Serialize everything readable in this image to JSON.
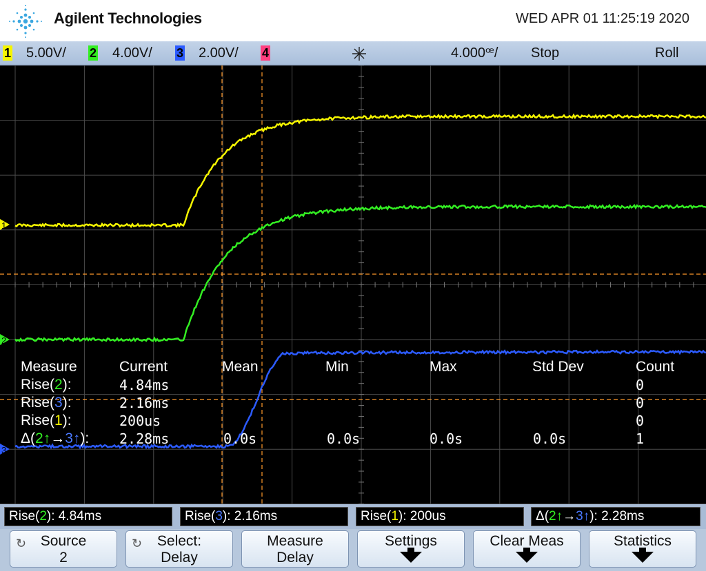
{
  "header": {
    "brand": "Agilent Technologies",
    "datetime": "WED APR 01 11:25:19 2020",
    "logo_icon": "agilent-spark-icon"
  },
  "status": {
    "ch1": {
      "num": "1",
      "scale": "5.00V/",
      "color": "#f5f500"
    },
    "ch2": {
      "num": "2",
      "scale": "4.00V/",
      "color": "#33ee22"
    },
    "ch3": {
      "num": "3",
      "scale": "2.00V/",
      "color": "#2c5bff"
    },
    "ch4": {
      "num": "4",
      "color": "#ff3f7f"
    },
    "trigger_icon": "sparkle-icon",
    "timebase": "4.000ꟹ/",
    "state": "Stop",
    "mode": "Roll"
  },
  "markers": {
    "ch1": "1",
    "ch2": "2",
    "ch3": "3"
  },
  "measure_table": {
    "headers": [
      "Measure",
      "Current",
      "Mean",
      "Min",
      "Max",
      "Std Dev",
      "Count"
    ],
    "rows": [
      {
        "label_pre": "Rise(",
        "ch": "2",
        "label_post": "):",
        "current": "4.84ms",
        "count": "0"
      },
      {
        "label_pre": "Rise(",
        "ch": "3",
        "label_post": "):",
        "current": "2.16ms",
        "count": "0"
      },
      {
        "label_pre": "Rise(",
        "ch": "1",
        "label_post": "):",
        "current": "200us",
        "count": "0"
      },
      {
        "label_pre": "Δ(",
        "ch_from": "2",
        "ch_to": "3",
        "label_post": "):",
        "current": "2.28ms",
        "mean": "0.0s",
        "min": "0.0s",
        "max": "0.0s",
        "std": "0.0s",
        "count": "1"
      }
    ]
  },
  "meas_bar": [
    {
      "pre": "Rise(",
      "ch": "2",
      "post": "): 4.84ms"
    },
    {
      "pre": "Rise(",
      "ch": "3",
      "post": "): 2.16ms"
    },
    {
      "pre": "Rise(",
      "ch": "1",
      "post": "): 200us"
    },
    {
      "pre": "Δ(",
      "ch_from": "2",
      "ch_to": "3",
      "post": "): 2.28ms"
    }
  ],
  "softkeys": [
    {
      "l1": "Source",
      "l2": "2",
      "icon": "rotate-knob-icon"
    },
    {
      "l1": "Select:",
      "l2": "Delay",
      "icon": "rotate-knob-icon"
    },
    {
      "l1": "Measure",
      "l2": "Delay"
    },
    {
      "l1": "Settings",
      "submenu": true
    },
    {
      "l1": "Clear Meas",
      "submenu": true
    },
    {
      "l1": "Statistics",
      "submenu": true
    }
  ],
  "colors": {
    "ch1": "#f5f500",
    "ch2": "#33ee22",
    "ch3": "#2c5bff",
    "ch4": "#ff3f7f",
    "cursor": "#ff9a2a",
    "grid": "#4c4c4c"
  }
}
